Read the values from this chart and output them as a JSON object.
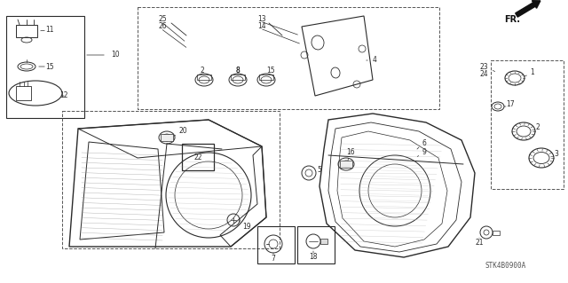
{
  "bg_color": "#ffffff",
  "line_color": "#2a2a2a",
  "fig_width": 6.4,
  "fig_height": 3.19,
  "dpi": 100,
  "watermark": "STK4B0900A",
  "fr_label": "FR."
}
